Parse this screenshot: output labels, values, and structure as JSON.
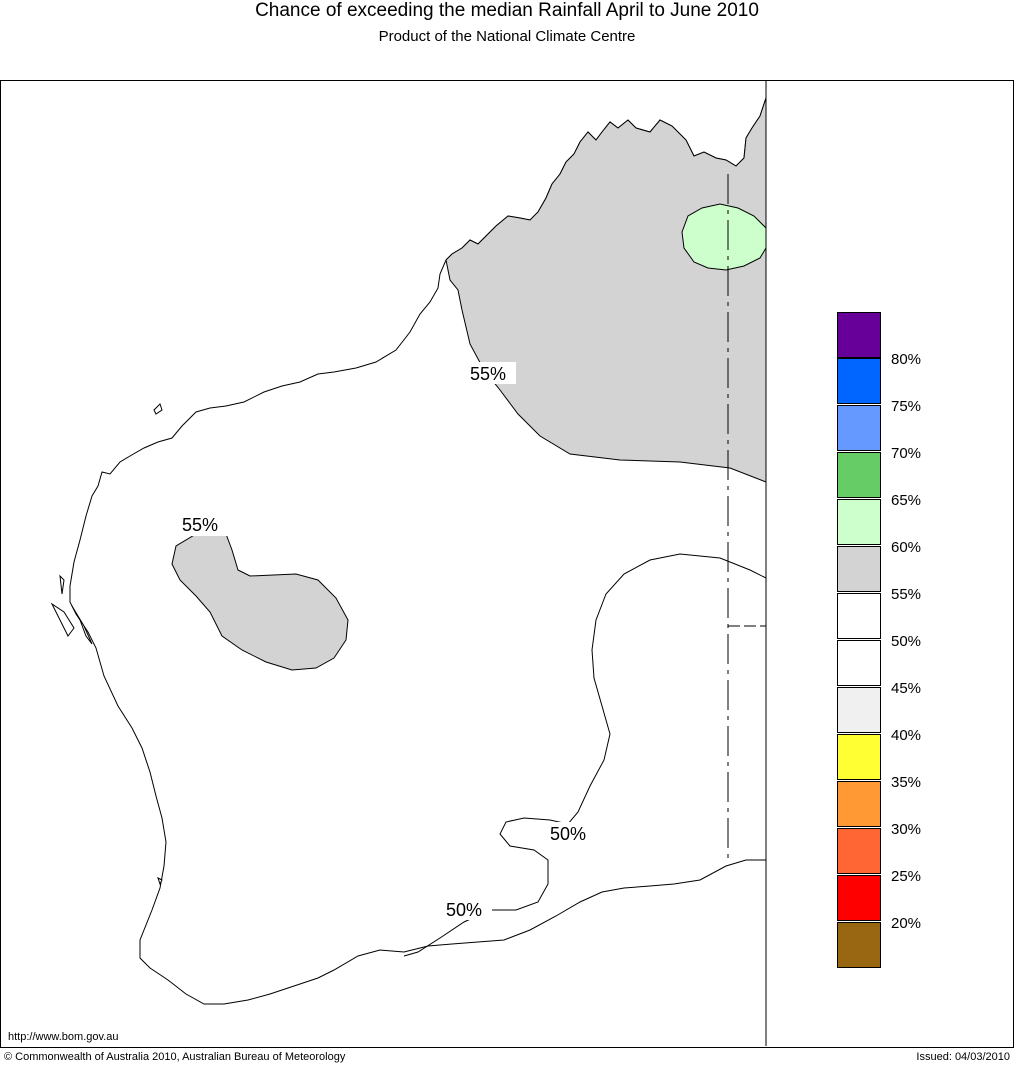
{
  "header": {
    "title": "Chance of exceeding the median Rainfall April to June 2010",
    "subtitle": "Product of the National Climate Centre"
  },
  "map": {
    "contour_labels": [
      "55%",
      "55%",
      "50%",
      "50%"
    ],
    "fill_colors": {
      "land": "#ffffff",
      "p55_60": "#d3d3d3",
      "p60_65": "#ccffcc",
      "outline": "#000000"
    }
  },
  "legend": {
    "labels": [
      "80%",
      "75%",
      "70%",
      "65%",
      "60%",
      "55%",
      "50%",
      "45%",
      "40%",
      "35%",
      "30%",
      "25%",
      "20%"
    ],
    "colors": [
      "#660099",
      "#0066ff",
      "#6699ff",
      "#66cc66",
      "#ccffcc",
      "#d3d3d3",
      "#ffffff",
      "#ffffff",
      "#f0f0f0",
      "#ffff33",
      "#ff9933",
      "#ff6633",
      "#ff0000",
      "#996611"
    ]
  },
  "footer": {
    "url": "http://www.bom.gov.au",
    "copyright": "© Commonwealth of Australia 2010, Australian Bureau of Meteorology",
    "issued": "Issued: 04/03/2010"
  }
}
